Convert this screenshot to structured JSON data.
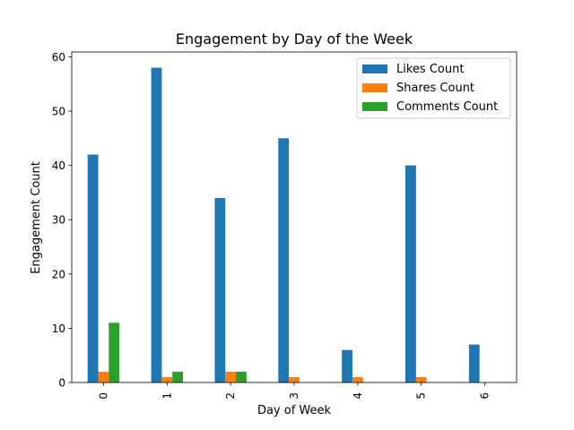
{
  "chart_data": {
    "type": "bar",
    "title": "Engagement by Day of the Week",
    "xlabel": "Day of Week",
    "ylabel": "Engagement Count",
    "categories": [
      "0",
      "1",
      "2",
      "3",
      "4",
      "5",
      "6"
    ],
    "series": [
      {
        "name": "Likes Count",
        "color": "#1f77b4",
        "values": [
          42,
          58,
          34,
          45,
          6,
          40,
          7
        ]
      },
      {
        "name": "Shares Count",
        "color": "#ff7f0e",
        "values": [
          2,
          1,
          2,
          1,
          1,
          1,
          0
        ]
      },
      {
        "name": "Comments Count",
        "color": "#2ca02c",
        "values": [
          11,
          2,
          2,
          0,
          0,
          0,
          0
        ]
      }
    ],
    "ylim": [
      0,
      60.9
    ],
    "yticks": [
      "0",
      "10",
      "20",
      "30",
      "40",
      "50",
      "60"
    ],
    "grid": false,
    "legend_position": "top-right"
  }
}
